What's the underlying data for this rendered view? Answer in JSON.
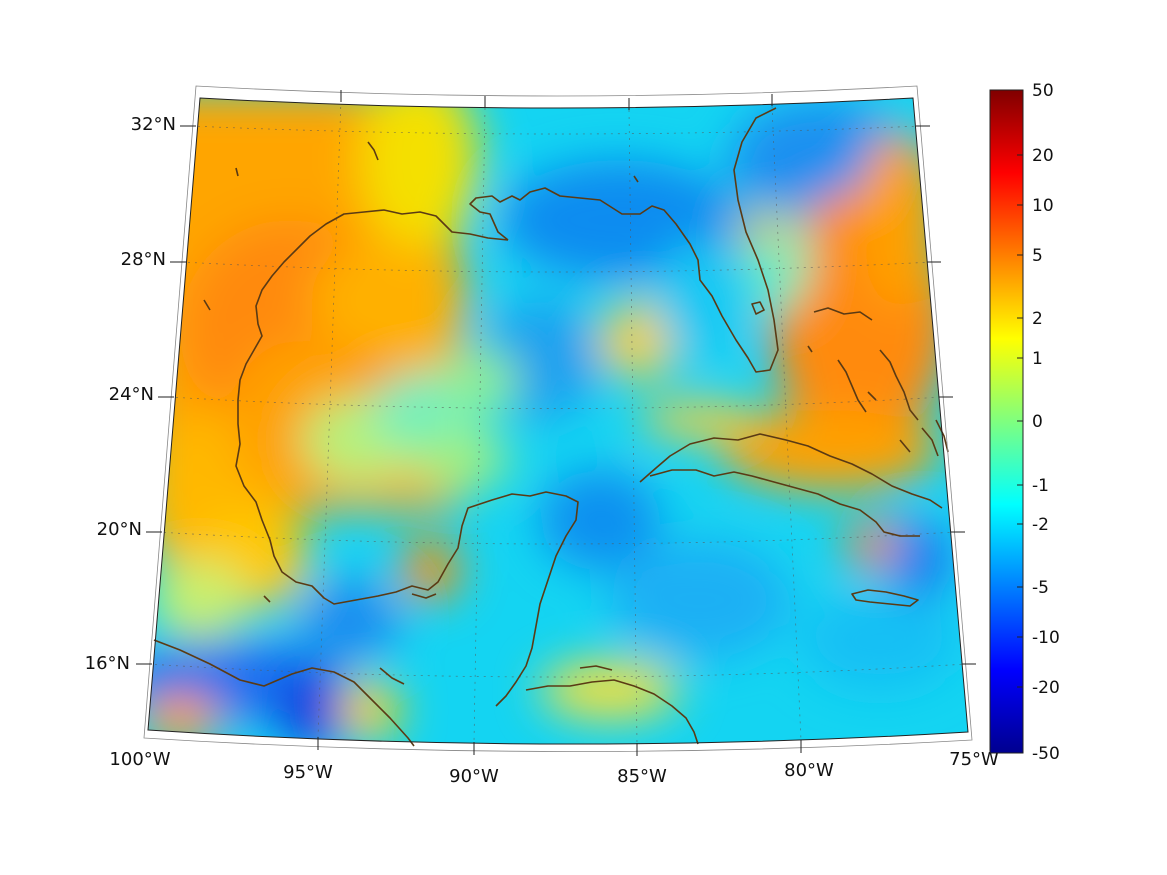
{
  "map": {
    "lat_labels": [
      {
        "value": 32,
        "text": "32°N"
      },
      {
        "value": 28,
        "text": "28°N"
      },
      {
        "value": 24,
        "text": "24°N"
      },
      {
        "value": 20,
        "text": "20°N"
      },
      {
        "value": 16,
        "text": "16°N"
      }
    ],
    "lon_labels": [
      {
        "value": -100,
        "text": "100°W"
      },
      {
        "value": -95,
        "text": "95°W"
      },
      {
        "value": -90,
        "text": "90°W"
      },
      {
        "value": -85,
        "text": "85°W"
      },
      {
        "value": -80,
        "text": "80°W"
      },
      {
        "value": -75,
        "text": "75°W"
      }
    ],
    "extent": {
      "lon_min": -100,
      "lon_max": -75,
      "lat_min": 14,
      "lat_max": 33
    },
    "coastline_color": "#5a3a14"
  },
  "colorbar": {
    "labels": [
      "50",
      "20",
      "10",
      "5",
      "2",
      "1",
      "0",
      "-1",
      "-2",
      "-5",
      "-10",
      "-20",
      "-50"
    ],
    "colors": [
      "#800000",
      "#ff0000",
      "#ff7f00",
      "#ffff00",
      "#7fff7f",
      "#00ffff",
      "#007fff",
      "#0000ff",
      "#00008f"
    ]
  }
}
